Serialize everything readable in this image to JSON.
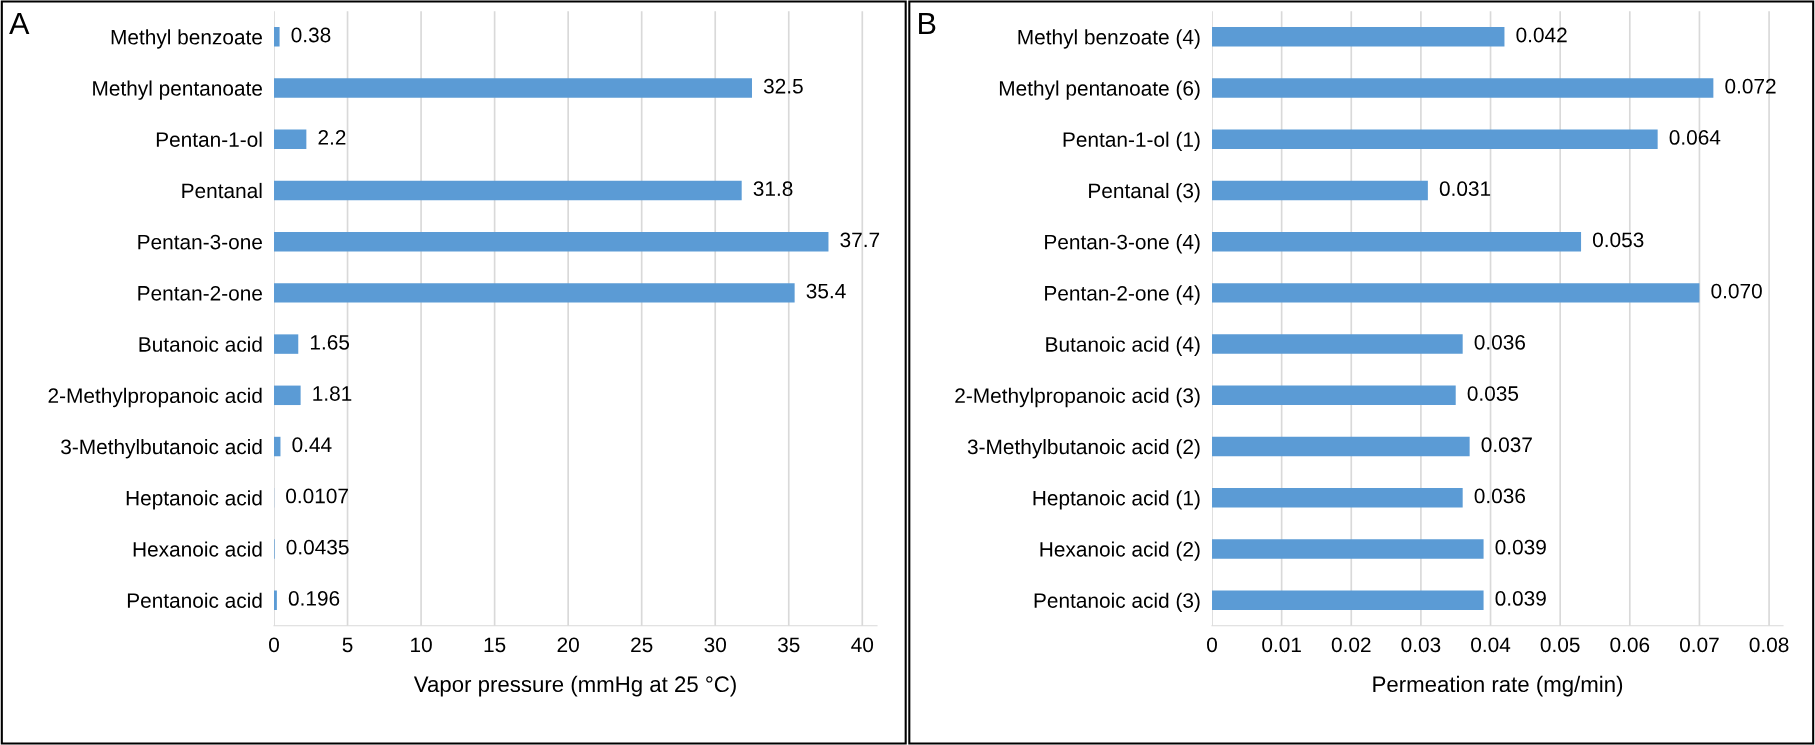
{
  "chart_data": [
    {
      "type": "bar",
      "orientation": "horizontal",
      "annotations": [
        "A"
      ],
      "xlabel": "Vapor pressure (mmHg at 25 °C)",
      "categories": [
        "Methyl benzoate",
        "Methyl pentanoate",
        "Pentan-1-ol",
        "Pentanal",
        "Pentan-3-one",
        "Pentan-2-one",
        "Butanoic acid",
        "2-Methylpropanoic acid",
        "3-Methylbutanoic acid",
        "Heptanoic acid",
        "Hexanoic acid",
        "Pentanoic acid"
      ],
      "values": [
        0.38,
        32.5,
        2.2,
        31.8,
        37.7,
        35.4,
        1.65,
        1.81,
        0.44,
        0.0107,
        0.0435,
        0.196
      ],
      "value_labels": [
        "0.38",
        "32.5",
        "2.2",
        "31.8",
        "37.7",
        "35.4",
        "1.65",
        "1.81",
        "0.44",
        "0.0107",
        "0.0435",
        "0.196"
      ],
      "color": "#5b9bd5",
      "xlim": [
        0,
        41
      ],
      "xticks": [
        0,
        5,
        10,
        15,
        20,
        25,
        30,
        35,
        40
      ],
      "grid": "x"
    },
    {
      "type": "bar",
      "orientation": "horizontal",
      "annotations": [
        "B"
      ],
      "xlabel": "Permeation rate (mg/min)",
      "categories": [
        "Methyl benzoate (4)",
        "Methyl pentanoate (6)",
        "Pentan-1-ol (1)",
        "Pentanal (3)",
        "Pentan-3-one (4)",
        "Pentan-2-one (4)",
        "Butanoic acid (4)",
        "2-Methylpropanoic acid (3)",
        "3-Methylbutanoic acid (2)",
        "Heptanoic acid (1)",
        "Hexanoic acid (2)",
        "Pentanoic acid (3)"
      ],
      "values": [
        0.042,
        0.072,
        0.064,
        0.031,
        0.053,
        0.07,
        0.036,
        0.035,
        0.037,
        0.036,
        0.039,
        0.039
      ],
      "value_labels": [
        "0.042",
        "0.072",
        "0.064",
        "0.031",
        "0.053",
        "0.070",
        "0.036",
        "0.035",
        "0.037",
        "0.036",
        "0.039",
        "0.039"
      ],
      "color": "#5b9bd5",
      "xlim": [
        0,
        0.082
      ],
      "xticks": [
        0,
        0.01,
        0.02,
        0.03,
        0.04,
        0.05,
        0.06,
        0.07,
        0.08
      ],
      "grid": "x"
    }
  ]
}
